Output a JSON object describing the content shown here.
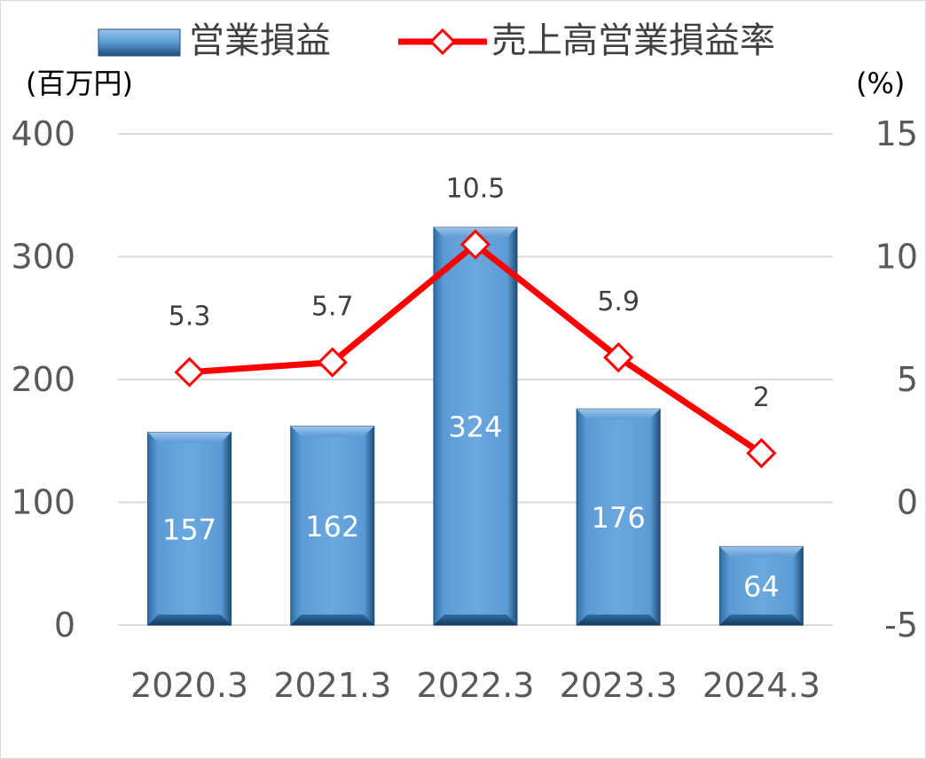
{
  "chart_data": {
    "type": "bar+line",
    "categories": [
      "2020.3",
      "2021.3",
      "2022.3",
      "2023.3",
      "2024.3"
    ],
    "series": [
      {
        "name": "営業損益",
        "type": "bar",
        "axis": "left",
        "values": [
          157,
          162,
          324,
          176,
          64
        ],
        "data_labels": [
          "157",
          "162",
          "324",
          "176",
          "64"
        ]
      },
      {
        "name": "売上高営業損益率",
        "type": "line",
        "axis": "right",
        "values": [
          5.3,
          5.7,
          10.5,
          5.9,
          2
        ],
        "data_labels": [
          "5.3",
          "5.7",
          "10.5",
          "5.9",
          "2"
        ]
      }
    ],
    "y_left": {
      "unit_label": "(百万円)",
      "ylim": [
        0,
        400
      ],
      "ticks": [
        "0",
        "100",
        "200",
        "300",
        "400"
      ]
    },
    "y_right": {
      "unit_label": "(%)",
      "ylim": [
        -5,
        15
      ],
      "ticks": [
        "-5",
        "0",
        "5",
        "10",
        "15"
      ]
    },
    "grid": true,
    "legend_position": "top",
    "colors": {
      "bar": "#5b9bd5",
      "bar_dark": "#1f4e79",
      "line": "#ff0000",
      "grid": "#d9d9d9",
      "text": "#595959"
    }
  }
}
